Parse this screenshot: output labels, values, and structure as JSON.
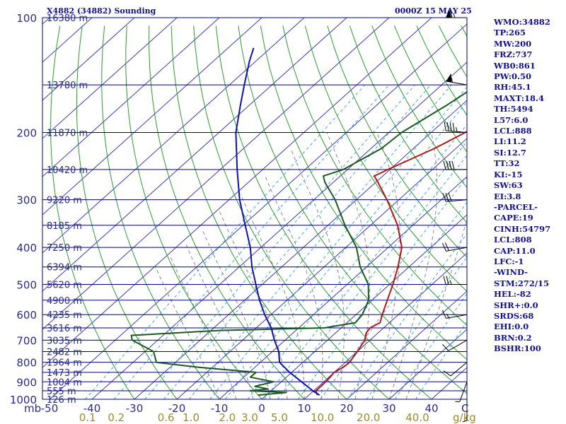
{
  "header": {
    "title": "X4882 (34882) Sounding",
    "time": "0000Z 15 MAY 25"
  },
  "stats": [
    "WMO:34882",
    "TP:265",
    "MW:200",
    "FRZ:737",
    "WB0:861",
    "PW:0.50",
    "RH:45.1",
    "MAXT:18.4",
    "TH:5494",
    "L57:6.0",
    "LCL:888",
    "LI:11.2",
    "SI:12.7",
    "TT:32",
    "KI:-15",
    "SW:63",
    "EI:3.8",
    "-PARCEL-",
    "CAPE:19",
    "CINH:54797",
    "LCL:808",
    "CAP:11.0",
    "LFC:-1",
    "-WIND-",
    "STM:272/15",
    "HEL:-82",
    "SHR+:0.0",
    "SRDS:68",
    "EHI:0.0",
    "BRN:0.2",
    "BSHR:100"
  ],
  "colors": {
    "isobar": "#000080",
    "isotherm": "#3a3ab8",
    "dry_adiabat": "#2e9a2e",
    "moist_adiabat": "#8a8a8a",
    "mixing_ratio": "#3aa6d6",
    "temperature": "#b01818",
    "dewpoint": "#1a5a22",
    "parcel": "#1010b0"
  },
  "chart_data": {
    "type": "line",
    "title": "",
    "x_unit_label": "C",
    "y_unit_label": "mb",
    "mixing_ratio_unit_label": "g/kg",
    "xlim": [
      -50,
      50
    ],
    "ylim": [
      1000,
      100
    ],
    "log_scale_y": true,
    "grid": true,
    "temperature_ticks": [
      "-50",
      "-40",
      "-30",
      "-20",
      "-10",
      "0",
      "10",
      "20",
      "30",
      "40"
    ],
    "pressure_ticks": [
      "1000",
      "900",
      "800",
      "700",
      "600",
      "500",
      "400",
      "300",
      "200",
      "100"
    ],
    "mixing_ratio_labels": [
      "0.1",
      "0.2",
      "0.6",
      "1.0",
      "2.0",
      "3.0",
      "5.0",
      "10.0",
      "20.0",
      "40.0"
    ],
    "heights": [
      {
        "p": 100,
        "label": "16380 m"
      },
      {
        "p": 150,
        "label": "13780 m"
      },
      {
        "p": 200,
        "label": "11870 m"
      },
      {
        "p": 250,
        "label": "10420 m"
      },
      {
        "p": 300,
        "label": "9220 m"
      },
      {
        "p": 350,
        "label": "8185 m"
      },
      {
        "p": 400,
        "label": "7250 m"
      },
      {
        "p": 450,
        "label": "6394 m"
      },
      {
        "p": 500,
        "label": "5620 m"
      },
      {
        "p": 550,
        "label": "4900 m"
      },
      {
        "p": 600,
        "label": "4235 m"
      },
      {
        "p": 650,
        "label": "3616 m"
      },
      {
        "p": 700,
        "label": "3035 m"
      },
      {
        "p": 750,
        "label": "2482 m"
      },
      {
        "p": 800,
        "label": "1964 m"
      },
      {
        "p": 850,
        "label": "1473 m"
      },
      {
        "p": 900,
        "label": "1004 m"
      },
      {
        "p": 950,
        "label": "555 m"
      },
      {
        "p": 1000,
        "label": "126 m"
      }
    ],
    "series": [
      {
        "key": "temperature",
        "points": [
          [
            975,
            12.0
          ],
          [
            950,
            10.5
          ],
          [
            925,
            10.5
          ],
          [
            900,
            10.5
          ],
          [
            875,
            10.3
          ],
          [
            850,
            10.0
          ],
          [
            825,
            10.8
          ],
          [
            800,
            11.0
          ],
          [
            775,
            10.5
          ],
          [
            750,
            10.0
          ],
          [
            700,
            8.8
          ],
          [
            670,
            7.2
          ],
          [
            650,
            6.8
          ],
          [
            630,
            7.8
          ],
          [
            600,
            6.2
          ],
          [
            550,
            3.6
          ],
          [
            500,
            0.8
          ],
          [
            450,
            -2.6
          ],
          [
            400,
            -6.8
          ],
          [
            350,
            -13.6
          ],
          [
            300,
            -22.8
          ],
          [
            270,
            -29.5
          ],
          [
            260,
            -32.0
          ],
          [
            250,
            -30.5
          ],
          [
            220,
            -25.0
          ],
          [
            200,
            -22.0
          ],
          [
            170,
            -18.2
          ],
          [
            150,
            -14.8
          ],
          [
            130,
            -13.0
          ],
          [
            115,
            -12.6
          ],
          [
            100,
            -11.8
          ]
        ]
      },
      {
        "key": "dewpoint",
        "points": [
          [
            975,
            -2.0
          ],
          [
            960,
            4.0
          ],
          [
            950,
            -5.0
          ],
          [
            940,
            -1.2
          ],
          [
            925,
            -5.0
          ],
          [
            900,
            -1.8
          ],
          [
            875,
            -8.5
          ],
          [
            850,
            -8.4
          ],
          [
            825,
            -23.0
          ],
          [
            800,
            -34.5
          ],
          [
            750,
            -38.0
          ],
          [
            700,
            -46.0
          ],
          [
            680,
            -47.5
          ],
          [
            660,
            -28.0
          ],
          [
            650,
            -4.0
          ],
          [
            630,
            2.0
          ],
          [
            600,
            1.5
          ],
          [
            550,
            -0.8
          ],
          [
            500,
            -5.0
          ],
          [
            450,
            -11.5
          ],
          [
            400,
            -17.5
          ],
          [
            350,
            -26.0
          ],
          [
            300,
            -35.0
          ],
          [
            270,
            -42.0
          ],
          [
            260,
            -44.0
          ],
          [
            250,
            -41.0
          ],
          [
            220,
            -37.5
          ],
          [
            200,
            -37.0
          ],
          [
            170,
            -33.5
          ],
          [
            150,
            -31.5
          ],
          [
            130,
            -34.0
          ],
          [
            115,
            -35.0
          ],
          [
            100,
            -36.0
          ]
        ]
      },
      {
        "key": "parcel",
        "points": [
          [
            975,
            12.5
          ],
          [
            950,
            9.8
          ],
          [
            900,
            4.8
          ],
          [
            850,
            -0.5
          ],
          [
            800,
            -5.5
          ],
          [
            750,
            -8.5
          ],
          [
            700,
            -12.5
          ],
          [
            650,
            -16.5
          ],
          [
            600,
            -21.5
          ],
          [
            550,
            -26.5
          ],
          [
            500,
            -31.5
          ],
          [
            450,
            -37.0
          ],
          [
            400,
            -42.5
          ],
          [
            350,
            -49.5
          ],
          [
            300,
            -57.5
          ],
          [
            250,
            -66.0
          ],
          [
            200,
            -76.0
          ],
          [
            170,
            -82.0
          ],
          [
            150,
            -86.5
          ],
          [
            130,
            -91.5
          ],
          [
            120,
            -94.0
          ]
        ]
      }
    ],
    "wind_barbs": [
      {
        "p": 100,
        "dir": 270,
        "speed": 65
      },
      {
        "p": 150,
        "dir": 280,
        "speed": 55
      },
      {
        "p": 200,
        "dir": 275,
        "speed": 45
      },
      {
        "p": 250,
        "dir": 270,
        "speed": 40
      },
      {
        "p": 300,
        "dir": 265,
        "speed": 30
      },
      {
        "p": 400,
        "dir": 260,
        "speed": 20
      },
      {
        "p": 500,
        "dir": 270,
        "speed": 25
      },
      {
        "p": 600,
        "dir": 260,
        "speed": 15
      },
      {
        "p": 700,
        "dir": 240,
        "speed": 10
      },
      {
        "p": 800,
        "dir": 230,
        "speed": 10
      },
      {
        "p": 900,
        "dir": 200,
        "speed": 5
      },
      {
        "p": 1000,
        "dir": 180,
        "speed": 5
      }
    ]
  }
}
